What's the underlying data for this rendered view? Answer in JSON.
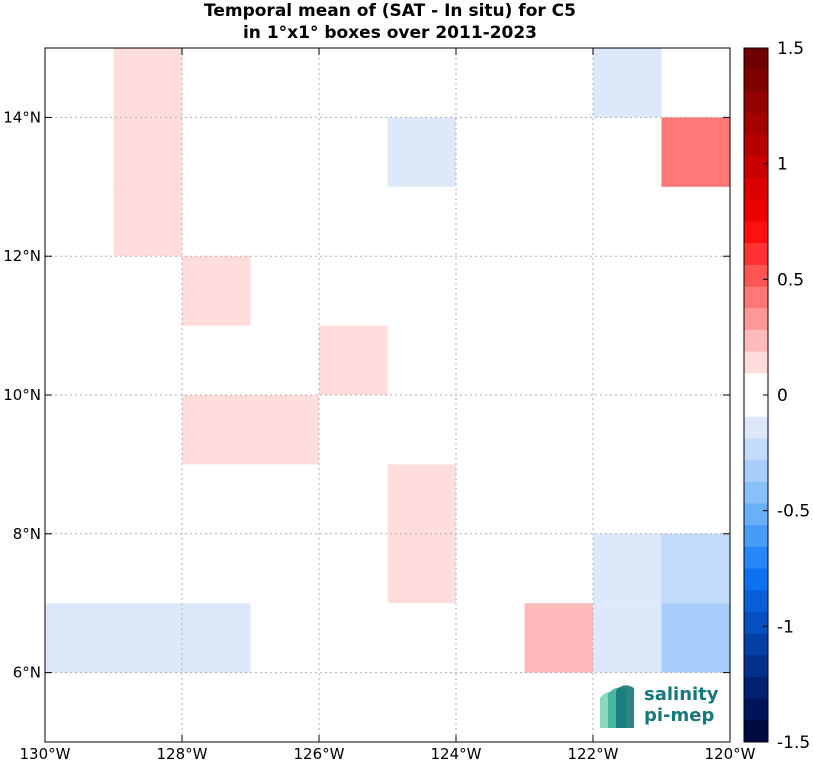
{
  "chart_data": {
    "type": "heatmap",
    "title_lines": [
      "Temporal mean of (SAT - In situ) for C5",
      "in 1°x1° boxes over 2011-2023"
    ],
    "xlim": [
      -130,
      -120
    ],
    "ylim": [
      5,
      15
    ],
    "x_ticks": [
      {
        "value": -130,
        "label": "130°W"
      },
      {
        "value": -128,
        "label": "128°W"
      },
      {
        "value": -126,
        "label": "126°W"
      },
      {
        "value": -124,
        "label": "124°W"
      },
      {
        "value": -122,
        "label": "122°W"
      },
      {
        "value": -120,
        "label": "120°W"
      }
    ],
    "y_ticks": [
      {
        "value": 6,
        "label": "6°N"
      },
      {
        "value": 8,
        "label": "8°N"
      },
      {
        "value": 10,
        "label": "10°N"
      },
      {
        "value": 12,
        "label": "12°N"
      },
      {
        "value": 14,
        "label": "14°N"
      }
    ],
    "grid": true,
    "cells": [
      {
        "lon": -129,
        "lat": 14,
        "value": 0.15
      },
      {
        "lon": -129,
        "lat": 13,
        "value": 0.15
      },
      {
        "lon": -129,
        "lat": 12,
        "value": 0.15
      },
      {
        "lon": -122,
        "lat": 14,
        "value": -0.1
      },
      {
        "lon": -125,
        "lat": 13,
        "value": -0.1
      },
      {
        "lon": -121,
        "lat": 13,
        "value": 0.4
      },
      {
        "lon": -128,
        "lat": 11,
        "value": 0.15
      },
      {
        "lon": -126,
        "lat": 10,
        "value": 0.15
      },
      {
        "lon": -128,
        "lat": 9,
        "value": 0.15
      },
      {
        "lon": -127,
        "lat": 9,
        "value": 0.15
      },
      {
        "lon": -125,
        "lat": 8,
        "value": 0.15
      },
      {
        "lon": -125,
        "lat": 7,
        "value": 0.15
      },
      {
        "lon": -122,
        "lat": 7,
        "value": -0.1
      },
      {
        "lon": -121,
        "lat": 7,
        "value": -0.2
      },
      {
        "lon": -130,
        "lat": 6,
        "value": -0.1
      },
      {
        "lon": -129,
        "lat": 6,
        "value": -0.1
      },
      {
        "lon": -128,
        "lat": 6,
        "value": -0.1
      },
      {
        "lon": -123,
        "lat": 6,
        "value": 0.25
      },
      {
        "lon": -122,
        "lat": 6,
        "value": -0.1
      },
      {
        "lon": -121,
        "lat": 6,
        "value": -0.3
      }
    ],
    "colorbar": {
      "range": [
        -1.5,
        1.5
      ],
      "ticks": [
        {
          "value": 1.5,
          "label": "1.5"
        },
        {
          "value": 1,
          "label": "1"
        },
        {
          "value": 0.5,
          "label": "0.5"
        },
        {
          "value": 0,
          "label": "0"
        },
        {
          "value": -0.5,
          "label": "-0.5"
        },
        {
          "value": -1,
          "label": "-1"
        },
        {
          "value": -1.5,
          "label": "-1.5"
        }
      ],
      "colors_top_to_bottom": [
        "#6e0000",
        "#800000",
        "#930000",
        "#a50000",
        "#b80000",
        "#ca0000",
        "#dc0000",
        "#ee0000",
        "#ff1010",
        "#ff3333",
        "#ff5555",
        "#ff7777",
        "#ff9999",
        "#ffbbbb",
        "#ffdddd",
        "#ffffff",
        "#ffffff",
        "#dde9fb",
        "#c3dbfa",
        "#a8cdfa",
        "#8ac0fa",
        "#6aaffa",
        "#479cf8",
        "#2687f6",
        "#0d72f2",
        "#0760da",
        "#0550c0",
        "#0340a6",
        "#02318c",
        "#012272",
        "#001458",
        "#000a40"
      ]
    }
  },
  "logo": {
    "line1": "salinity",
    "line2": "pi-mep"
  }
}
